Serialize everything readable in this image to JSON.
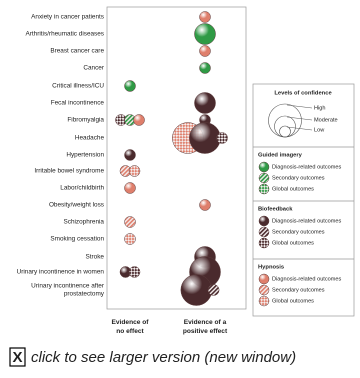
{
  "rows": [
    {
      "lines": [
        "Anxiety in cancer patients"
      ]
    },
    {
      "lines": [
        "Arthritis/rheumatic diseases"
      ]
    },
    {
      "lines": [
        "Breast cancer care"
      ]
    },
    {
      "lines": [
        "Cancer"
      ]
    },
    {
      "lines": [
        "Critical illness/ICU"
      ]
    },
    {
      "lines": [
        "Fecal incontinence"
      ]
    },
    {
      "lines": [
        "Fibromyalgia"
      ]
    },
    {
      "lines": [
        "Headache"
      ]
    },
    {
      "lines": [
        "Hypertension"
      ]
    },
    {
      "lines": [
        "Irritable bowel syndrome"
      ]
    },
    {
      "lines": [
        "Labor/childbirth"
      ]
    },
    {
      "lines": [
        "Obesity/weight loss"
      ]
    },
    {
      "lines": [
        "Schizophrenia"
      ]
    },
    {
      "lines": [
        "Smoking cessation"
      ]
    },
    {
      "lines": [
        "Stroke"
      ]
    },
    {
      "lines": [
        "Urinary incontinence in women"
      ]
    },
    {
      "lines": [
        "Urinary incontinence after",
        "prostatectomy"
      ]
    }
  ],
  "columns": [
    {
      "lines": [
        "Evidence of",
        "no effect"
      ]
    },
    {
      "lines": [
        "Evidence of a",
        "positive effect"
      ]
    }
  ],
  "legend": {
    "confidence": {
      "title": "Levels of confidence",
      "levels": [
        "Low",
        "Moderate",
        "High"
      ]
    },
    "interventions": [
      {
        "title": "Guided imagery",
        "color": "#2f9a45",
        "outcomes": [
          "Diagnosis-related outcomes",
          "Secondary outcomes",
          "Global outcomes"
        ]
      },
      {
        "title": "Biofeedback",
        "color": "#4a2a2d",
        "outcomes": [
          "Diagnosis-related outcomes",
          "Secondary outcomes",
          "Global outcomes"
        ]
      },
      {
        "title": "Hypnosis",
        "color": "#df7f6c",
        "outcomes": [
          "Diagnosis-related outcomes",
          "Secondary outcomes",
          "Global outcomes"
        ]
      }
    ]
  },
  "bubbles": [
    {
      "row": 0,
      "column": 1,
      "intervention": 2,
      "outcome": 0,
      "confidence": 0
    },
    {
      "row": 1,
      "column": 1,
      "intervention": 0,
      "outcome": 0,
      "confidence": 1
    },
    {
      "row": 2,
      "column": 1,
      "intervention": 2,
      "outcome": 0,
      "confidence": 0
    },
    {
      "row": 3,
      "column": 1,
      "intervention": 0,
      "outcome": 0,
      "confidence": 0
    },
    {
      "row": 4,
      "column": 0,
      "intervention": 0,
      "outcome": 0,
      "confidence": 0
    },
    {
      "row": 5,
      "column": 1,
      "intervention": 1,
      "outcome": 0,
      "confidence": 1
    },
    {
      "row": 6,
      "column": 0,
      "intervention": 1,
      "outcome": 2,
      "confidence": 0
    },
    {
      "row": 6,
      "column": 0,
      "intervention": 0,
      "outcome": 1,
      "confidence": 0
    },
    {
      "row": 6,
      "column": 0,
      "intervention": 2,
      "outcome": 0,
      "confidence": 0
    },
    {
      "row": 6,
      "column": 1,
      "intervention": 1,
      "outcome": 0,
      "confidence": 0
    },
    {
      "row": 7,
      "column": 1,
      "intervention": 2,
      "outcome": 2,
      "confidence": 2
    },
    {
      "row": 7,
      "column": 1,
      "intervention": 1,
      "outcome": 0,
      "confidence": 2
    },
    {
      "row": 7,
      "column": 1,
      "intervention": 1,
      "outcome": 2,
      "confidence": 0
    },
    {
      "row": 8,
      "column": 0,
      "intervention": 1,
      "outcome": 0,
      "confidence": 0
    },
    {
      "row": 9,
      "column": 0,
      "intervention": 2,
      "outcome": 1,
      "confidence": 0
    },
    {
      "row": 9,
      "column": 0,
      "intervention": 2,
      "outcome": 2,
      "confidence": 0
    },
    {
      "row": 10,
      "column": 0,
      "intervention": 2,
      "outcome": 0,
      "confidence": 0
    },
    {
      "row": 11,
      "column": 1,
      "intervention": 2,
      "outcome": 0,
      "confidence": 0
    },
    {
      "row": 12,
      "column": 0,
      "intervention": 2,
      "outcome": 1,
      "confidence": 0
    },
    {
      "row": 13,
      "column": 0,
      "intervention": 2,
      "outcome": 2,
      "confidence": 0
    },
    {
      "row": 14,
      "column": 1,
      "intervention": 1,
      "outcome": 0,
      "confidence": 1
    },
    {
      "row": 15,
      "column": 0,
      "intervention": 1,
      "outcome": 0,
      "confidence": 0
    },
    {
      "row": 15,
      "column": 0,
      "intervention": 1,
      "outcome": 2,
      "confidence": 0
    },
    {
      "row": 15,
      "column": 1,
      "intervention": 1,
      "outcome": 0,
      "confidence": 2
    },
    {
      "row": 16,
      "column": 1,
      "intervention": 1,
      "outcome": 0,
      "confidence": 2
    },
    {
      "row": 16,
      "column": 1,
      "intervention": 1,
      "outcome": 1,
      "confidence": 0
    }
  ],
  "link": {
    "icon": "X",
    "text": "click to see larger version (new window)"
  }
}
